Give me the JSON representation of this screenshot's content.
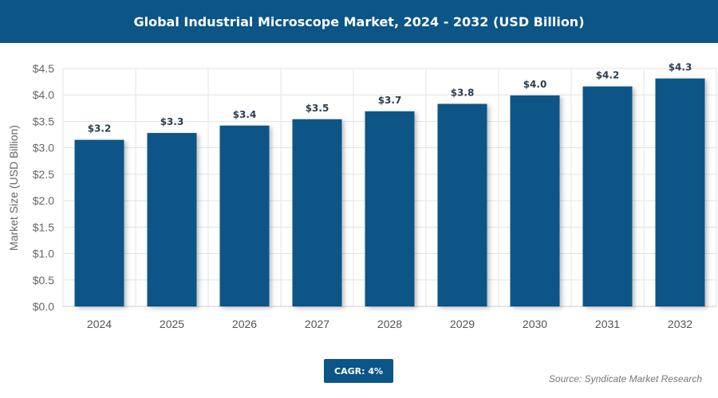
{
  "title": "Global Industrial Microscope Market, 2024 - 2032 (USD Billion)",
  "cagr": "CAGR: 4%",
  "source": "Source: Syndicate Market Research",
  "colors": {
    "bar": "#0b5587",
    "header": "#0b5587"
  },
  "chart_data": {
    "type": "bar",
    "title": "Global Industrial Microscope Market, 2024 - 2032 (USD Billion)",
    "xlabel": "",
    "ylabel": "Market Size (USD Billion)",
    "ylim": [
      0,
      4.5
    ],
    "yticks": [
      "$0.0",
      "$0.5",
      "$1.0",
      "$1.5",
      "$2.0",
      "$2.5",
      "$3.0",
      "$3.5",
      "$4.0",
      "$4.5"
    ],
    "grid": true,
    "categories": [
      "2024",
      "2025",
      "2026",
      "2027",
      "2028",
      "2029",
      "2030",
      "2031",
      "2032"
    ],
    "values": [
      3.15,
      3.28,
      3.42,
      3.54,
      3.69,
      3.83,
      3.99,
      4.16,
      4.31
    ],
    "data_labels": [
      "$3.2",
      "$3.3",
      "$3.4",
      "$3.5",
      "$3.7",
      "$3.8",
      "$4.0",
      "$4.2",
      "$4.3"
    ]
  }
}
